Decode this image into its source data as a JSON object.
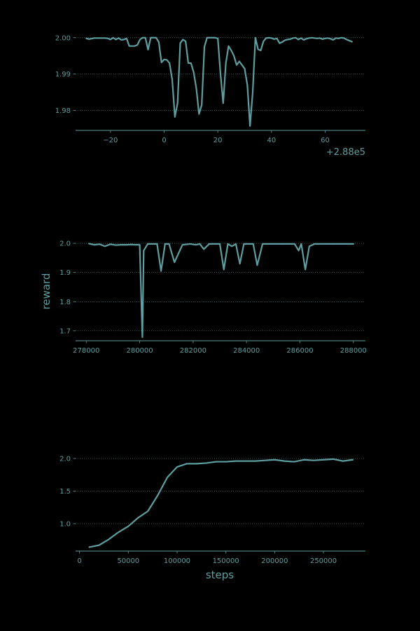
{
  "theme": {
    "background": "#000000",
    "line_color": "#5f9ea0",
    "axis_color": "#5f9ea0",
    "grid_color": "#5f9ea0"
  },
  "chart_data": [
    {
      "type": "line",
      "title": "",
      "xlabel": "",
      "ylabel": "",
      "x_offset_label": "+2.88e5",
      "xlim": [
        -33,
        75
      ],
      "ylim": [
        1.9745,
        2.0015
      ],
      "xticks": [
        -20,
        0,
        20,
        40,
        60
      ],
      "xtick_labels": [
        "−20",
        "0",
        "20",
        "40",
        "60"
      ],
      "yticks": [
        1.98,
        1.99,
        2.0
      ],
      "ytick_labels": [
        "1.98",
        "1.99",
        "2.00"
      ],
      "grid": "horizontal dotted",
      "x": [
        -29,
        -28,
        -26,
        -24,
        -22,
        -21,
        -20,
        -19,
        -18,
        -17,
        -16,
        -15,
        -14,
        -13,
        -11,
        -10,
        -9,
        -8,
        -7,
        -6,
        -5,
        -4,
        -3,
        -2,
        -1,
        0,
        1,
        2,
        3,
        4,
        5,
        6,
        7,
        8,
        9,
        10,
        11,
        12,
        13,
        14,
        15,
        16,
        17,
        18,
        19,
        20,
        21,
        22,
        23,
        24,
        25,
        26,
        27,
        28,
        29,
        30,
        31,
        32,
        33,
        34,
        35,
        36,
        37,
        38,
        39,
        40,
        41,
        42,
        43,
        44,
        45,
        46,
        47,
        48,
        49,
        50,
        51,
        52,
        53,
        54,
        55,
        56,
        57,
        58,
        59,
        60,
        61,
        62,
        63,
        64,
        65,
        66,
        67,
        68,
        69,
        70
      ],
      "y": [
        1.9998,
        1.9996,
        1.9999,
        1.9999,
        1.9999,
        1.9998,
        1.9995,
        2.0,
        1.9995,
        1.9999,
        1.9994,
        1.9995,
        1.9998,
        1.9977,
        1.9977,
        1.998,
        1.9995,
        2.0,
        2.0,
        1.9967,
        2.0,
        2.0,
        2.0,
        1.9988,
        1.9932,
        1.994,
        1.9939,
        1.993,
        1.9885,
        1.9782,
        1.982,
        1.9985,
        1.9995,
        1.999,
        1.993,
        1.993,
        1.9905,
        1.986,
        1.979,
        1.9815,
        1.9975,
        2.0,
        2.0,
        2.0,
        2.0,
        1.9998,
        1.99,
        1.982,
        1.993,
        1.9977,
        1.9965,
        1.995,
        1.9925,
        1.9935,
        1.9925,
        1.9915,
        1.987,
        1.9757,
        1.985,
        2.0,
        1.9968,
        1.9965,
        1.999,
        1.9999,
        2.0,
        1.9999,
        1.9996,
        1.9998,
        1.9985,
        1.9988,
        1.9993,
        1.9995,
        1.9996,
        1.9999,
        2.0,
        1.9995,
        1.9999,
        1.9994,
        1.9997,
        1.9999,
        2.0,
        1.9999,
        1.9998,
        1.9999,
        1.9996,
        1.9998,
        1.9999,
        1.9997,
        1.9994,
        1.9999,
        1.9998,
        2.0,
        1.9999,
        1.9995,
        1.9992,
        1.9989
      ]
    },
    {
      "type": "line",
      "title": "",
      "xlabel": "",
      "ylabel": "reward",
      "xlim": [
        277600,
        288450
      ],
      "ylim": [
        1.666,
        2.005
      ],
      "xticks": [
        278000,
        280000,
        282000,
        284000,
        286000,
        288000
      ],
      "xtick_labels": [
        "278000",
        "280000",
        "282000",
        "284000",
        "286000",
        "288000"
      ],
      "yticks": [
        1.7,
        1.8,
        1.9,
        2.0
      ],
      "ytick_labels": [
        "1.7",
        "1.8",
        "1.9",
        "2.0"
      ],
      "grid": "horizontal dotted",
      "x": [
        278100,
        278300,
        278500,
        278700,
        278900,
        279100,
        279300,
        279500,
        279700,
        279850,
        280000,
        280100,
        280150,
        280300,
        280500,
        280650,
        280800,
        280950,
        281100,
        281300,
        281600,
        281900,
        282100,
        282250,
        282400,
        282600,
        282850,
        283000,
        283150,
        283300,
        283450,
        283600,
        283750,
        283900,
        284100,
        284250,
        284400,
        284600,
        284900,
        285200,
        285500,
        285800,
        285950,
        286050,
        286200,
        286350,
        286550,
        286800,
        287100,
        287500,
        288000
      ],
      "y": [
        1.999,
        1.995,
        1.997,
        1.99,
        1.997,
        1.994,
        1.995,
        1.995,
        1.996,
        1.995,
        1.995,
        1.678,
        1.975,
        1.998,
        1.998,
        1.998,
        1.905,
        1.998,
        1.998,
        1.935,
        1.995,
        1.998,
        1.995,
        1.998,
        1.98,
        1.998,
        1.998,
        1.998,
        1.91,
        1.998,
        1.99,
        1.998,
        1.93,
        1.998,
        1.998,
        1.998,
        1.925,
        1.998,
        1.998,
        1.998,
        1.998,
        1.998,
        1.975,
        1.998,
        1.91,
        1.99,
        1.998,
        1.998,
        1.998,
        1.998,
        1.998
      ]
    },
    {
      "type": "line",
      "title": "",
      "xlabel": "steps",
      "ylabel": "",
      "xlim": [
        -4000,
        293000
      ],
      "ylim": [
        0.58,
        2.085
      ],
      "xticks": [
        0,
        50000,
        100000,
        150000,
        200000,
        250000
      ],
      "xtick_labels": [
        "0",
        "50000",
        "100000",
        "150000",
        "200000",
        "250000"
      ],
      "yticks": [
        1.0,
        1.5,
        2.0
      ],
      "ytick_labels": [
        "1.0",
        "1.5",
        "2.0"
      ],
      "grid": "horizontal dotted",
      "x": [
        10000,
        20000,
        30000,
        40000,
        50000,
        60000,
        70000,
        80000,
        90000,
        100000,
        110000,
        120000,
        130000,
        140000,
        150000,
        160000,
        170000,
        180000,
        190000,
        200000,
        210000,
        220000,
        230000,
        240000,
        250000,
        260000,
        270000,
        280000
      ],
      "y": [
        0.64,
        0.67,
        0.76,
        0.87,
        0.96,
        1.09,
        1.19,
        1.43,
        1.71,
        1.87,
        1.92,
        1.92,
        1.93,
        1.95,
        1.95,
        1.96,
        1.96,
        1.96,
        1.97,
        1.98,
        1.96,
        1.95,
        1.98,
        1.97,
        1.98,
        1.99,
        1.96,
        1.98
      ]
    }
  ]
}
